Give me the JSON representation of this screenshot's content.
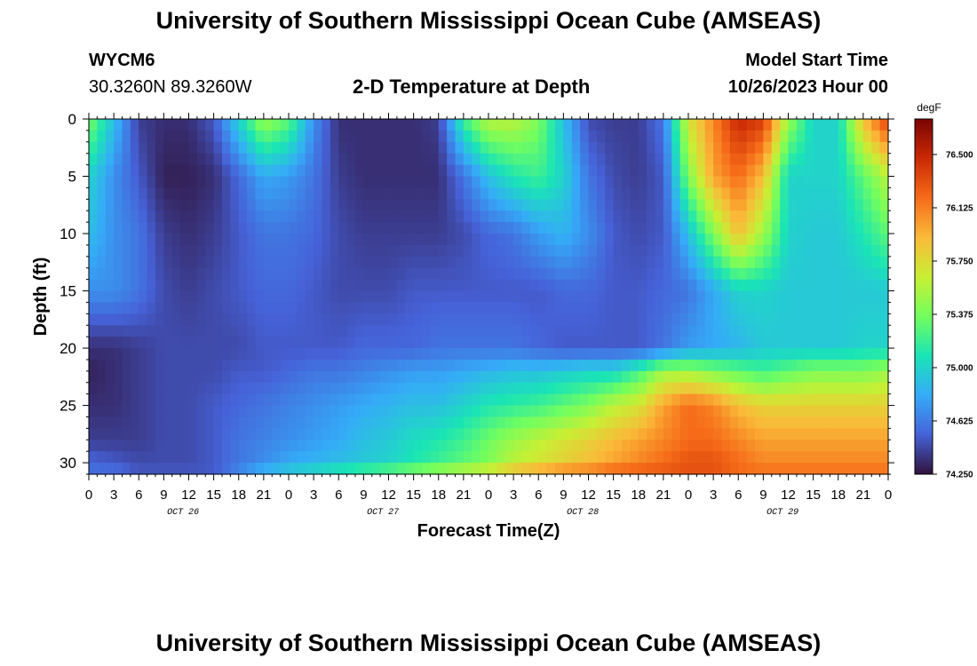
{
  "header": {
    "title": "University of Southern Mississippi Ocean Cube (AMSEAS)",
    "station": "WYCM6",
    "coords": "30.3260N  89.3260W",
    "plot_title": "2-D Temperature at Depth",
    "model_start_label": "Model Start Time",
    "model_start_value": "10/26/2023 Hour 00"
  },
  "footer": {
    "title": "University of Southern Mississippi Ocean Cube (AMSEAS)"
  },
  "chart_data": {
    "type": "heatmap",
    "title": "2-D Temperature at Depth",
    "xlabel": "Forecast Time(Z)",
    "ylabel": "Depth (ft)",
    "units": "degF",
    "x_hours_range": [
      0,
      96
    ],
    "x_tick_step_hours": 3,
    "x_tick_labels": [
      "0",
      "3",
      "6",
      "9",
      "12",
      "15",
      "18",
      "21",
      "0",
      "3",
      "6",
      "9",
      "12",
      "15",
      "18",
      "21",
      "0",
      "3",
      "6",
      "9",
      "12",
      "15",
      "18",
      "21",
      "0",
      "3",
      "6",
      "9",
      "12",
      "15",
      "18",
      "21",
      "0"
    ],
    "date_labels": [
      {
        "label": "OCT 26",
        "hour": 11
      },
      {
        "label": "OCT 27",
        "hour": 35
      },
      {
        "label": "OCT 28",
        "hour": 59
      },
      {
        "label": "OCT 29",
        "hour": 83
      }
    ],
    "y_range_ft": [
      0,
      31
    ],
    "y_ticks": [
      0,
      5,
      10,
      15,
      20,
      25,
      30
    ],
    "colorbar": {
      "min": 74.25,
      "max": 76.75,
      "ticks": [
        "76.500",
        "76.125",
        "75.750",
        "75.375",
        "75.000",
        "74.625",
        "74.250"
      ],
      "colors": [
        "#30123b",
        "#4662d8",
        "#35abf8",
        "#1ae4b6",
        "#72fe5e",
        "#c8ef34",
        "#faba39",
        "#f66b19",
        "#ca2a04",
        "#7a0403"
      ]
    },
    "description": "Approximate temperature field (degF) with depth vs. forecast hour",
    "depths_ft": [
      0,
      5,
      10,
      15,
      20,
      22,
      25,
      28,
      30,
      31
    ],
    "hours": [
      0,
      3,
      6,
      9,
      12,
      15,
      18,
      21,
      24,
      27,
      30,
      33,
      36,
      39,
      42,
      45,
      48,
      51,
      54,
      57,
      60,
      63,
      66,
      69,
      72,
      75,
      78,
      81,
      84,
      87,
      90,
      93,
      96
    ],
    "values": [
      [
        75.4,
        74.9,
        74.4,
        74.35,
        74.35,
        74.5,
        75.0,
        75.5,
        75.3,
        74.7,
        74.35,
        74.35,
        74.35,
        74.35,
        74.4,
        75.2,
        75.6,
        75.6,
        75.4,
        74.9,
        74.45,
        74.4,
        74.4,
        74.6,
        75.7,
        76.1,
        76.5,
        76.4,
        75.5,
        75.0,
        75.0,
        75.9,
        76.4
      ],
      [
        75.0,
        74.7,
        74.5,
        74.3,
        74.3,
        74.35,
        74.55,
        74.8,
        74.75,
        74.6,
        74.4,
        74.35,
        74.35,
        74.35,
        74.35,
        74.6,
        74.9,
        75.1,
        75.2,
        75.0,
        74.6,
        74.45,
        74.4,
        74.5,
        75.4,
        76.0,
        76.2,
        75.9,
        75.0,
        75.0,
        75.0,
        75.3,
        75.6
      ],
      [
        74.9,
        74.7,
        74.6,
        74.4,
        74.35,
        74.4,
        74.5,
        74.6,
        74.6,
        74.55,
        74.45,
        74.4,
        74.4,
        74.4,
        74.4,
        74.45,
        74.55,
        74.6,
        74.75,
        74.85,
        74.7,
        74.5,
        74.45,
        74.5,
        74.9,
        75.4,
        75.9,
        75.5,
        75.0,
        74.95,
        74.95,
        75.1,
        75.3
      ],
      [
        74.7,
        74.7,
        74.6,
        74.45,
        74.4,
        74.45,
        74.5,
        74.55,
        74.55,
        74.5,
        74.45,
        74.45,
        74.45,
        74.5,
        74.5,
        74.5,
        74.5,
        74.5,
        74.5,
        74.55,
        74.55,
        74.5,
        74.5,
        74.55,
        74.6,
        74.8,
        75.0,
        75.0,
        74.95,
        74.95,
        74.95,
        74.95,
        74.95
      ],
      [
        74.35,
        74.35,
        74.4,
        74.45,
        74.45,
        74.45,
        74.45,
        74.5,
        74.5,
        74.5,
        74.5,
        74.55,
        74.55,
        74.55,
        74.6,
        74.6,
        74.6,
        74.6,
        74.55,
        74.5,
        74.5,
        74.5,
        74.5,
        74.6,
        74.75,
        74.8,
        74.85,
        74.95,
        74.95,
        74.95,
        74.95,
        75.0,
        75.0
      ],
      [
        74.3,
        74.35,
        74.4,
        74.45,
        74.45,
        74.45,
        74.5,
        74.5,
        74.55,
        74.6,
        74.6,
        74.65,
        74.7,
        74.75,
        74.75,
        74.8,
        74.85,
        74.9,
        74.9,
        74.95,
        75.0,
        75.0,
        75.2,
        75.5,
        75.5,
        75.4,
        75.3,
        75.2,
        75.3,
        75.4,
        75.4,
        75.4,
        75.5
      ],
      [
        74.35,
        74.35,
        74.4,
        74.45,
        74.45,
        74.5,
        74.55,
        74.6,
        74.65,
        74.7,
        74.75,
        74.8,
        74.85,
        74.9,
        74.9,
        75.0,
        75.1,
        75.15,
        75.2,
        75.3,
        75.4,
        75.6,
        75.7,
        76.0,
        76.2,
        76.1,
        75.9,
        75.8,
        75.8,
        75.8,
        75.8,
        75.8,
        75.8
      ],
      [
        74.4,
        74.4,
        74.4,
        74.45,
        74.45,
        74.5,
        74.6,
        74.65,
        74.7,
        74.75,
        74.8,
        74.9,
        74.95,
        75.05,
        75.1,
        75.2,
        75.35,
        75.5,
        75.6,
        75.7,
        75.8,
        75.9,
        76.0,
        76.1,
        76.2,
        76.2,
        76.1,
        76.0,
        76.0,
        76.0,
        76.0,
        76.0,
        76.0
      ],
      [
        74.55,
        74.5,
        74.45,
        74.45,
        74.45,
        74.5,
        74.6,
        74.7,
        74.8,
        74.85,
        74.9,
        74.95,
        75.0,
        75.1,
        75.2,
        75.3,
        75.4,
        75.6,
        75.7,
        75.8,
        75.9,
        76.0,
        76.1,
        76.2,
        76.3,
        76.3,
        76.2,
        76.1,
        76.1,
        76.1,
        76.1,
        76.1,
        76.1
      ],
      [
        74.6,
        74.6,
        74.5,
        74.5,
        74.5,
        74.5,
        74.7,
        74.9,
        75.0,
        75.1,
        75.2,
        75.3,
        75.4,
        75.5,
        75.6,
        75.7,
        75.8,
        76.0,
        76.1,
        76.2,
        76.2,
        76.3,
        76.3,
        76.3,
        76.3,
        76.3,
        76.2,
        76.2,
        76.2,
        76.2,
        76.2,
        76.2,
        76.2
      ]
    ]
  }
}
